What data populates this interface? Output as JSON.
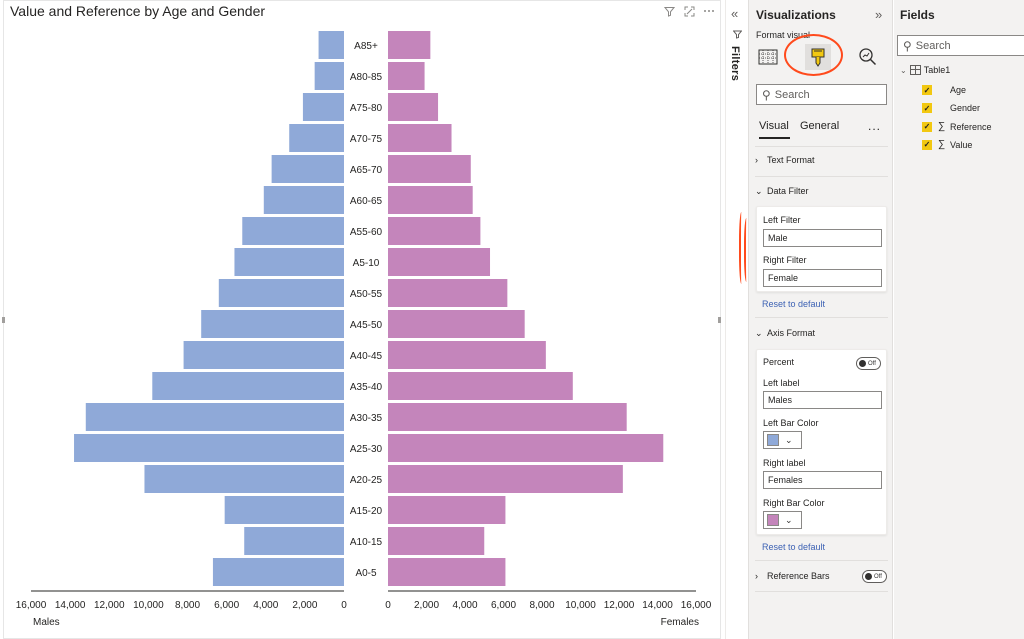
{
  "visual": {
    "title": "Value and Reference by Age and Gender",
    "header_icons": [
      "filter-icon",
      "focus-mode-icon",
      "more-options-icon"
    ]
  },
  "chart_data": {
    "type": "bar",
    "orientation": "horizontal-mirrored (population pyramid)",
    "categories": [
      "A85+",
      "A80-85",
      "A75-80",
      "A70-75",
      "A65-70",
      "A60-65",
      "A55-60",
      "A5-10",
      "A50-55",
      "A45-50",
      "A40-45",
      "A35-40",
      "A30-35",
      "A25-30",
      "A20-25",
      "A15-20",
      "A10-15",
      "A0-5"
    ],
    "series": [
      {
        "name": "Males",
        "side": "left",
        "color": "#8fa9d8",
        "values": [
          1300,
          1500,
          2100,
          2800,
          3700,
          4100,
          5200,
          5600,
          6400,
          7300,
          8200,
          9800,
          13200,
          13800,
          10200,
          6100,
          5100,
          6700
        ]
      },
      {
        "name": "Females",
        "side": "right",
        "color": "#c485bb",
        "values": [
          2200,
          1900,
          2600,
          3300,
          4300,
          4400,
          4800,
          5300,
          6200,
          7100,
          8200,
          9600,
          12400,
          14300,
          12200,
          6100,
          5000,
          6100
        ]
      }
    ],
    "xlim": [
      0,
      16000
    ],
    "ticks": [
      "0",
      "2,000",
      "4,000",
      "6,000",
      "8,000",
      "10,000",
      "12,000",
      "14,000",
      "16,000"
    ],
    "xlabel_left": "Males",
    "xlabel_right": "Females"
  },
  "filters": {
    "label": "Filters",
    "collapse_icon": "double-chevron-left-icon"
  },
  "visualizations": {
    "title": "Visualizations",
    "subtitle": "Format visual",
    "search_placeholder": "Search",
    "tabs": [
      "Visual",
      "General"
    ],
    "more": "...",
    "sections": {
      "text_format": "Text Format",
      "data_filter": "Data Filter",
      "axis_format": "Axis Format",
      "reference_bars": "Reference Bars"
    },
    "data_filter": {
      "left_filter_label": "Left Filter",
      "left_filter_value": "Male",
      "right_filter_label": "Right Filter",
      "right_filter_value": "Female",
      "reset": "Reset to default"
    },
    "axis_format": {
      "percent_label": "Percent",
      "percent_toggle": "Off",
      "left_label_label": "Left label",
      "left_label_value": "Males",
      "left_bar_color_label": "Left Bar Color",
      "left_bar_color": "#8fa9d8",
      "right_label_label": "Right label",
      "right_label_value": "Females",
      "right_bar_color_label": "Right Bar Color",
      "right_bar_color": "#c485bb",
      "reset": "Reset to default"
    },
    "reference_bars_toggle": "Off",
    "annotation_color": "#ff4a1c"
  },
  "fields": {
    "title": "Fields",
    "search_placeholder": "Search",
    "table": "Table1",
    "items": [
      {
        "name": "Age",
        "measure": false
      },
      {
        "name": "Gender",
        "measure": false
      },
      {
        "name": "Reference",
        "measure": true
      },
      {
        "name": "Value",
        "measure": true
      }
    ]
  }
}
